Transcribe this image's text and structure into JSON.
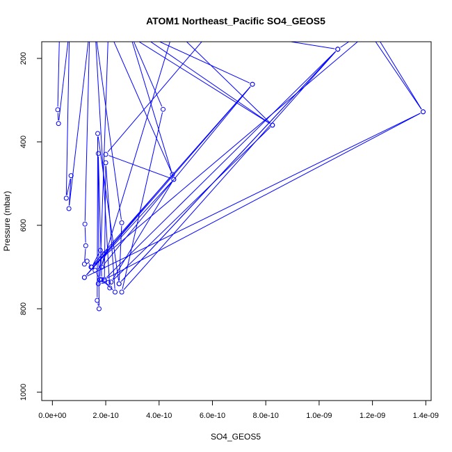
{
  "chart_data": {
    "type": "line",
    "title": "ATOM1 Northeast_Pacific SO4_GEOS5",
    "xlabel": "SO4_GEOS5",
    "ylabel": "Pressure (mbar)",
    "xlim": [
      -4e-11,
      1.42e-09
    ],
    "ylim": [
      1020,
      160
    ],
    "y_reversed": true,
    "x_ticks": [
      0,
      2e-10,
      4e-10,
      6e-10,
      8e-10,
      1e-09,
      1.2e-09,
      1.4e-09
    ],
    "x_tick_labels": [
      "0.0e+00",
      "2.0e-10",
      "4.0e-10",
      "6.0e-10",
      "8.0e-10",
      "1.0e-09",
      "1.2e-09",
      "1.4e-09"
    ],
    "y_ticks": [
      200,
      400,
      600,
      800,
      1000
    ],
    "y_tick_labels": [
      "200",
      "400",
      "600",
      "800",
      "1000"
    ],
    "color": "#0000ff",
    "grid": false,
    "series": [
      {
        "points": [
          [
            2.7e-11,
            130
          ],
          [
            2e-11,
            323
          ],
          [
            2.3e-11,
            356
          ],
          [
            6.4e-11,
            130
          ],
          [
            5.2e-11,
            535
          ],
          [
            7e-11,
            481
          ],
          [
            6.2e-11,
            560
          ],
          [
            1.4e-10,
            130
          ],
          [
            1.22e-10,
            597
          ],
          [
            1.25e-10,
            649
          ],
          [
            1.2e-10,
            693
          ],
          [
            1.3e-10,
            686
          ],
          [
            1.48e-10,
            700
          ],
          [
            1.8e-10,
            660
          ],
          [
            1.95e-10,
            668
          ],
          [
            1.85e-10,
            700
          ],
          [
            1.6e-10,
            708
          ],
          [
            1.78e-10,
            730
          ],
          [
            1.72e-10,
            740
          ],
          [
            2.1e-10,
            737
          ],
          [
            2.15e-10,
            750
          ],
          [
            1.6e-10,
            130
          ],
          [
            2.6e-10,
            594
          ],
          [
            2.5e-10,
            740
          ],
          [
            1.7e-10,
            380
          ],
          [
            1.68e-10,
            780
          ],
          [
            1.75e-10,
            800
          ],
          [
            1.72e-10,
            428
          ],
          [
            1.85e-10,
            730
          ],
          [
            2.35e-10,
            760
          ],
          [
            2e-10,
            450
          ],
          [
            1.95e-10,
            733
          ],
          [
            1.78e-10,
            730
          ],
          [
            2.1e-10,
            130
          ],
          [
            4.5e-10,
            478
          ],
          [
            1.2e-10,
            725
          ],
          [
            4.55e-10,
            490
          ],
          [
            2.85e-10,
            130
          ],
          [
            4.15e-10,
            322
          ],
          [
            2.6e-10,
            760
          ],
          [
            1.07e-09,
            178
          ],
          [
            2.5e-10,
            740
          ],
          [
            1.07e-09,
            178
          ],
          [
            1.95e-10,
            730
          ],
          [
            1.39e-09,
            328
          ],
          [
            1.2e-10,
            725
          ],
          [
            7.5e-10,
            262
          ],
          [
            1.85e-10,
            700
          ],
          [
            4.55e-10,
            130
          ],
          [
            8.25e-10,
            360
          ],
          [
            3e-10,
            130
          ],
          [
            7.5e-10,
            262
          ],
          [
            1.45e-10,
            700
          ],
          [
            1.2e-09,
            130
          ],
          [
            1.39e-09,
            328
          ],
          [
            1.18e-09,
            130
          ],
          [
            1.07e-09,
            178
          ],
          [
            6e-10,
            130
          ],
          [
            2e-10,
            430
          ],
          [
            4.55e-10,
            490
          ],
          [
            2.2e-10,
            736
          ],
          [
            8.25e-10,
            360
          ],
          [
            2.5e-10,
            130
          ]
        ]
      }
    ]
  }
}
